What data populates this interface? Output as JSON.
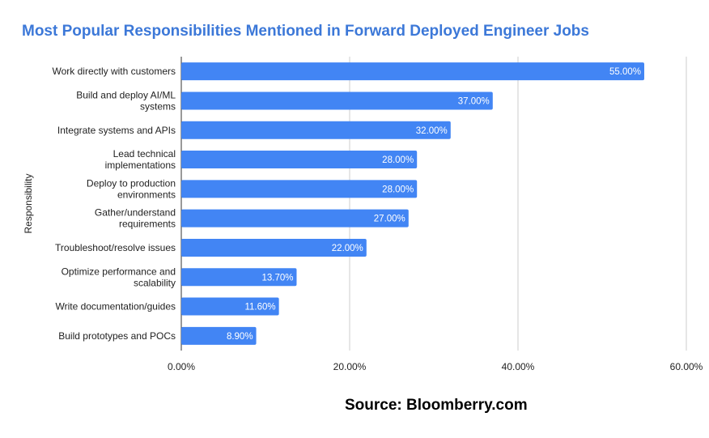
{
  "chart_data": {
    "type": "bar",
    "orientation": "horizontal",
    "title": "Most Popular Responsibilities Mentioned in Forward Deployed Engineer Jobs",
    "ylabel": "Responsibility",
    "xlabel": "",
    "xlim": [
      0,
      60
    ],
    "x_ticks": [
      "0.00%",
      "20.00%",
      "40.00%",
      "60.00%"
    ],
    "grid": true,
    "bar_color": "#4285f4",
    "title_color": "#3c78d8",
    "categories": [
      [
        "Work directly with customers"
      ],
      [
        "Build and deploy AI/ML",
        "systems"
      ],
      [
        "Integrate systems and APIs"
      ],
      [
        "Lead technical",
        "implementations"
      ],
      [
        "Deploy to production",
        "environments"
      ],
      [
        "Gather/understand",
        "requirements"
      ],
      [
        "Troubleshoot/resolve issues"
      ],
      [
        "Optimize performance and",
        "scalability"
      ],
      [
        "Write documentation/guides"
      ],
      [
        "Build prototypes and POCs"
      ]
    ],
    "values": [
      55.0,
      37.0,
      32.0,
      28.0,
      28.0,
      27.0,
      22.0,
      13.7,
      11.6,
      8.9
    ],
    "value_labels": [
      "55.00%",
      "37.00%",
      "32.00%",
      "28.00%",
      "28.00%",
      "27.00%",
      "22.00%",
      "13.70%",
      "11.60%",
      "8.90%"
    ]
  },
  "source": "Source: Bloomberry.com"
}
